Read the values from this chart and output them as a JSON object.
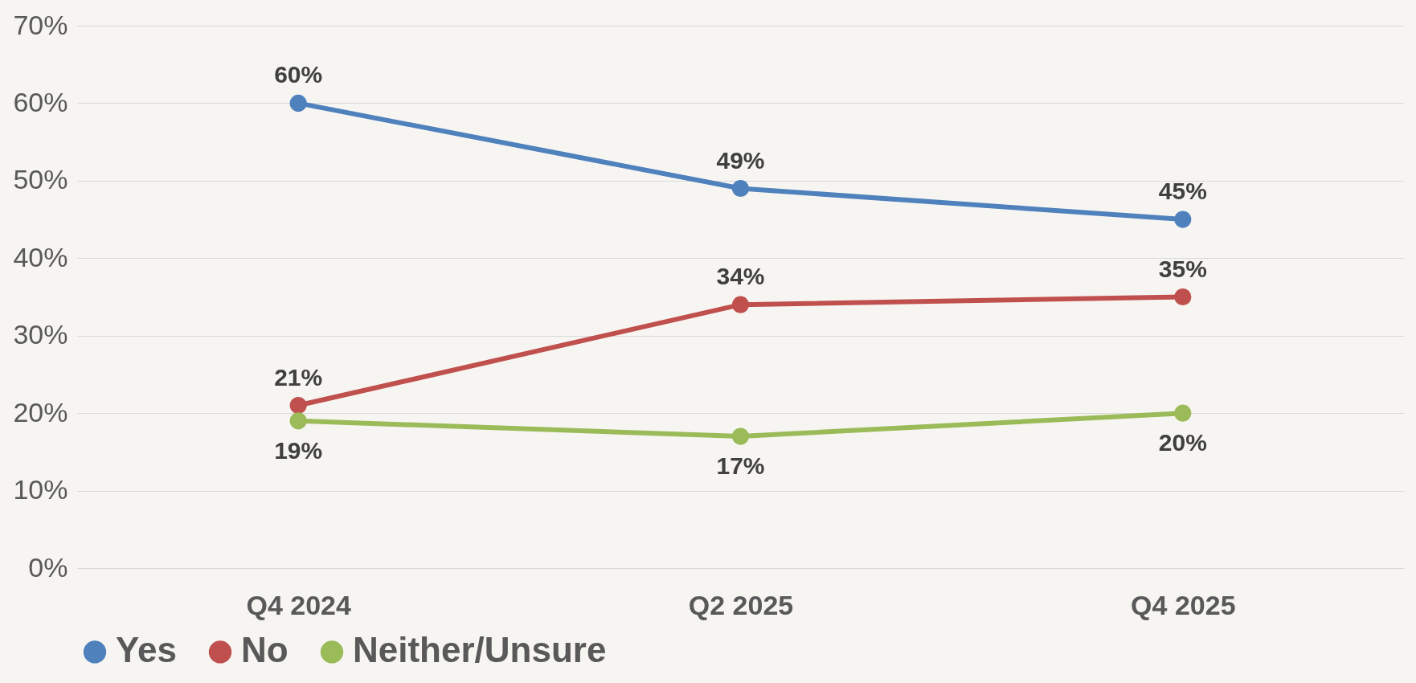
{
  "chart_data": {
    "type": "line",
    "categories": [
      "Q4 2024",
      "Q2 2025",
      "Q4 2025"
    ],
    "series": [
      {
        "name": "Yes",
        "color": "#4f81bd",
        "values": [
          60,
          49,
          45
        ],
        "value_labels": [
          "60%",
          "49%",
          "45%"
        ]
      },
      {
        "name": "No",
        "color": "#c0504d",
        "values": [
          21,
          34,
          35
        ],
        "value_labels": [
          "21%",
          "34%",
          "35%"
        ]
      },
      {
        "name": "Neither/Unsure",
        "color": "#9bbb59",
        "values": [
          19,
          17,
          20
        ],
        "value_labels": [
          "19%",
          "17%",
          "20%"
        ]
      }
    ],
    "ylim": [
      0,
      70
    ],
    "yticks": [
      {
        "value": 0,
        "label": "0%"
      },
      {
        "value": 10,
        "label": "10%"
      },
      {
        "value": 20,
        "label": "20%"
      },
      {
        "value": 30,
        "label": "30%"
      },
      {
        "value": 40,
        "label": "40%"
      },
      {
        "value": 50,
        "label": "50%"
      },
      {
        "value": 60,
        "label": "60%"
      },
      {
        "value": 70,
        "label": "70%"
      }
    ],
    "grid": "y",
    "legend": "bottom",
    "marker": "circle",
    "line_style": "solid"
  }
}
